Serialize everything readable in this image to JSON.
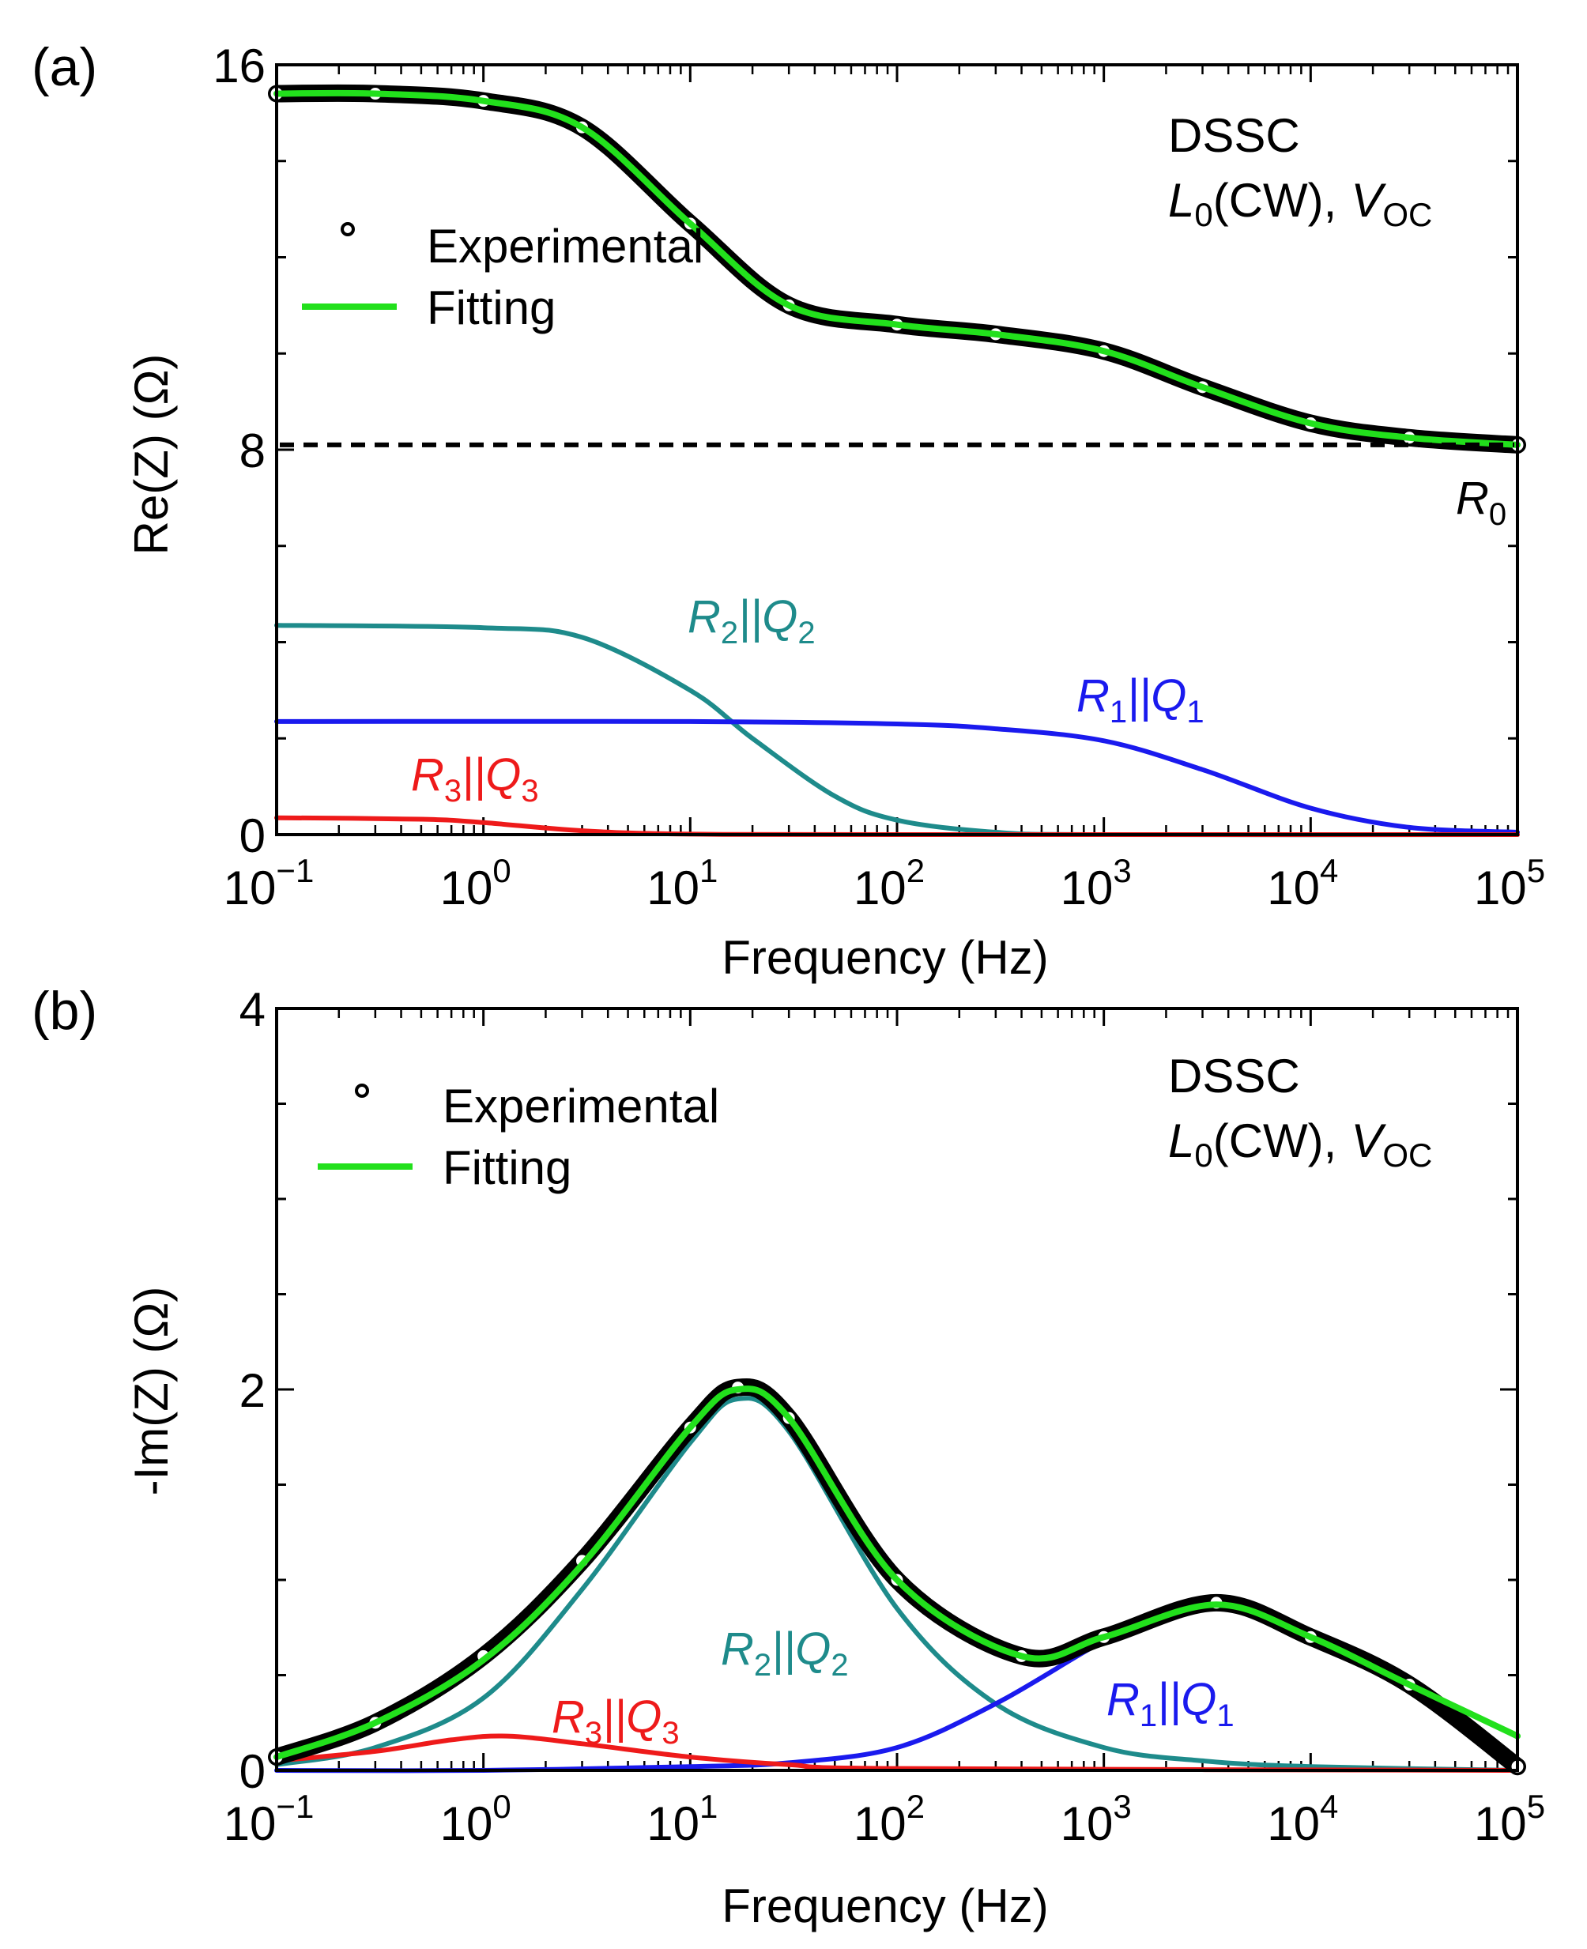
{
  "chart_data": [
    {
      "type": "line",
      "panel_label": "(a)",
      "title": "",
      "xlabel": "Frequency (Hz)",
      "ylabel": "Re(Z) (Ω)",
      "xscale": "log",
      "xlim": [
        0.1,
        100000
      ],
      "ylim": [
        0,
        16
      ],
      "xticks": [
        {
          "base": "10",
          "exp": "−1"
        },
        {
          "base": "10",
          "exp": "0"
        },
        {
          "base": "10",
          "exp": "1"
        },
        {
          "base": "10",
          "exp": "2"
        },
        {
          "base": "10",
          "exp": "3"
        },
        {
          "base": "10",
          "exp": "4"
        },
        {
          "base": "10",
          "exp": "5"
        }
      ],
      "yticks": [
        "0",
        "8",
        "16"
      ],
      "annotation_lines": [
        "DSSC",
        "L",
        "0",
        "(CW),",
        "V",
        "OC"
      ],
      "legend": {
        "position": "upper-left",
        "experimental": "Experimental",
        "fitting": "Fitting"
      },
      "r0_label": {
        "main": "R",
        "sub": "0",
        "value": 8.1
      },
      "series": [
        {
          "name": "Experimental",
          "color": "#000000",
          "style": "markers",
          "x": [
            0.1,
            0.3,
            1,
            3,
            10,
            30,
            100,
            300,
            1000,
            3000,
            10000,
            30000,
            100000
          ],
          "values": [
            15.4,
            15.4,
            15.25,
            14.7,
            12.7,
            11.0,
            10.6,
            10.4,
            10.05,
            9.3,
            8.55,
            8.25,
            8.1
          ]
        },
        {
          "name": "Fitting",
          "color": "#22e01c",
          "style": "line",
          "x": [
            0.1,
            0.3,
            1,
            3,
            10,
            30,
            100,
            300,
            1000,
            3000,
            10000,
            30000,
            100000
          ],
          "values": [
            15.4,
            15.4,
            15.25,
            14.7,
            12.7,
            11.0,
            10.6,
            10.4,
            10.05,
            9.3,
            8.55,
            8.25,
            8.1
          ]
        },
        {
          "name": "R2||Q2",
          "label": {
            "a": "R",
            "asub": "2",
            "mid": "||Q",
            "bsub": "2"
          },
          "color": "#1e8b8b",
          "x": [
            0.1,
            1,
            3,
            10,
            20,
            50,
            100,
            300,
            1000,
            100000
          ],
          "values": [
            4.35,
            4.3,
            4.1,
            3.0,
            2.0,
            0.8,
            0.3,
            0.05,
            0,
            0
          ]
        },
        {
          "name": "R1||Q1",
          "label": {
            "a": "R",
            "asub": "1",
            "mid": "||Q",
            "bsub": "1"
          },
          "color": "#1a1aee",
          "x": [
            0.1,
            10,
            100,
            300,
            1000,
            3000,
            10000,
            30000,
            100000
          ],
          "values": [
            2.35,
            2.35,
            2.3,
            2.2,
            1.95,
            1.35,
            0.55,
            0.15,
            0.05
          ]
        },
        {
          "name": "R3||Q3",
          "label": {
            "a": "R",
            "asub": "3",
            "mid": "||Q",
            "bsub": "3"
          },
          "color": "#ee1a1a",
          "x": [
            0.1,
            0.5,
            1,
            3,
            10,
            100,
            100000
          ],
          "values": [
            0.35,
            0.32,
            0.25,
            0.08,
            0.01,
            0,
            0
          ]
        }
      ]
    },
    {
      "type": "line",
      "panel_label": "(b)",
      "title": "",
      "xlabel": "Frequency (Hz)",
      "ylabel": "-Im(Z) (Ω)",
      "xscale": "log",
      "xlim": [
        0.1,
        100000
      ],
      "ylim": [
        0,
        4
      ],
      "xticks": [
        {
          "base": "10",
          "exp": "−1"
        },
        {
          "base": "10",
          "exp": "0"
        },
        {
          "base": "10",
          "exp": "1"
        },
        {
          "base": "10",
          "exp": "2"
        },
        {
          "base": "10",
          "exp": "3"
        },
        {
          "base": "10",
          "exp": "4"
        },
        {
          "base": "10",
          "exp": "5"
        }
      ],
      "yticks": [
        "0",
        "2",
        "4"
      ],
      "annotation_lines": [
        "DSSC",
        "L",
        "0",
        "(CW),",
        "V",
        "OC"
      ],
      "legend": {
        "position": "upper-left",
        "experimental": "Experimental",
        "fitting": "Fitting"
      },
      "series": [
        {
          "name": "Experimental",
          "color": "#000000",
          "style": "markers",
          "x": [
            0.1,
            0.3,
            1,
            3,
            10,
            17,
            30,
            100,
            400,
            1000,
            3500,
            10000,
            30000,
            100000
          ],
          "values": [
            0.07,
            0.25,
            0.6,
            1.1,
            1.8,
            2.01,
            1.85,
            1.0,
            0.6,
            0.7,
            0.88,
            0.7,
            0.45,
            0.02
          ]
        },
        {
          "name": "Fitting",
          "color": "#22e01c",
          "style": "line",
          "x": [
            0.1,
            0.3,
            1,
            3,
            10,
            17,
            30,
            100,
            400,
            1000,
            3500,
            10000,
            30000,
            100000
          ],
          "values": [
            0.07,
            0.25,
            0.58,
            1.08,
            1.8,
            2.0,
            1.85,
            1.0,
            0.6,
            0.7,
            0.87,
            0.7,
            0.45,
            0.18
          ]
        },
        {
          "name": "R2||Q2",
          "label": {
            "a": "R",
            "asub": "2",
            "mid": "||Q",
            "bsub": "2"
          },
          "color": "#1e8b8b",
          "x": [
            0.1,
            0.3,
            1,
            3,
            10,
            17,
            30,
            100,
            300,
            1000,
            3000,
            10000,
            100000
          ],
          "values": [
            0.03,
            0.12,
            0.38,
            0.95,
            1.72,
            1.95,
            1.78,
            0.85,
            0.35,
            0.12,
            0.05,
            0.02,
            0
          ]
        },
        {
          "name": "R1||Q1",
          "label": {
            "a": "R",
            "asub": "1",
            "mid": "||Q",
            "bsub": "1"
          },
          "color": "#1a1aee",
          "x": [
            0.1,
            1,
            10,
            30,
            100,
            300,
            1000,
            2000,
            3500,
            10000,
            30000,
            100000
          ],
          "values": [
            0,
            0,
            0.02,
            0.04,
            0.12,
            0.35,
            0.68,
            0.82,
            0.86,
            0.7,
            0.45,
            0.02
          ]
        },
        {
          "name": "R3||Q3",
          "label": {
            "a": "R",
            "asub": "3",
            "mid": "||Q",
            "bsub": "3"
          },
          "color": "#ee1a1a",
          "x": [
            0.1,
            0.3,
            0.7,
            1.3,
            3,
            10,
            30,
            100,
            100000
          ],
          "values": [
            0.05,
            0.1,
            0.16,
            0.18,
            0.14,
            0.07,
            0.03,
            0.01,
            0
          ]
        }
      ]
    }
  ]
}
